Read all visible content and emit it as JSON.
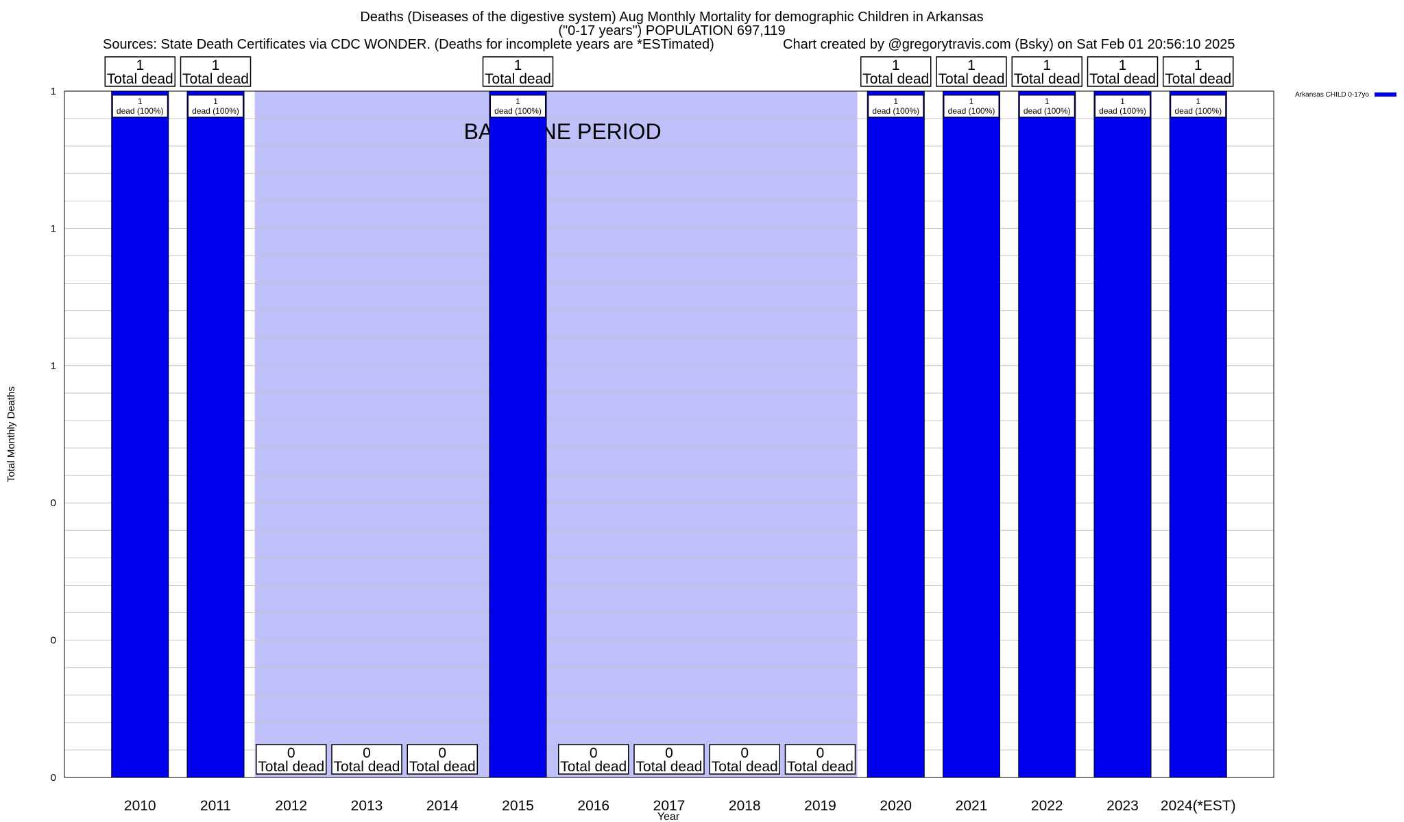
{
  "header": {
    "title_line1": "Deaths (Diseases of the digestive system) Aug Monthly Mortality for demographic Children in Arkansas",
    "title_line2": "(\"0-17 years\") POPULATION 697,119",
    "sources": "Sources: State Death Certificates via CDC WONDER. (Deaths for incomplete years are *ESTimated)",
    "credit": "Chart created by @gregorytravis.com (Bsky) on Sat Feb 01 20:56:10 2025"
  },
  "chart_data": {
    "type": "bar",
    "categories": [
      "2010",
      "2011",
      "2012",
      "2013",
      "2014",
      "2015",
      "2016",
      "2017",
      "2018",
      "2019",
      "2020",
      "2021",
      "2022",
      "2023",
      "2024(*EST)"
    ],
    "series": [
      {
        "name": "Arkansas CHILD 0-17yo",
        "color": "#0000ee",
        "values": [
          1,
          1,
          0,
          0,
          0,
          1,
          0,
          0,
          0,
          0,
          1,
          1,
          1,
          1,
          1
        ]
      }
    ],
    "top_label_numbers": [
      "1",
      "1",
      "0",
      "0",
      "0",
      "1",
      "0",
      "0",
      "0",
      "0",
      "1",
      "1",
      "1",
      "1",
      "1"
    ],
    "top_label_text": "Total dead",
    "inner_label_numbers": [
      "1",
      "1",
      "",
      "",
      "",
      "1",
      "",
      "",
      "",
      "",
      "1",
      "1",
      "1",
      "1",
      "1"
    ],
    "inner_label_text": "dead (100%)",
    "xlabel": "Year",
    "ylabel": "Total Monthly Deaths",
    "ylim": [
      0,
      1
    ],
    "ytick_values": [
      0,
      0.2,
      0.4,
      0.6,
      0.8,
      1
    ],
    "ytick_labels": [
      "0",
      "0",
      "0",
      "1",
      "1",
      "1"
    ],
    "baseline": {
      "label": "BASELINE PERIOD",
      "start": "2012",
      "end": "2019",
      "color": "#bfbffa"
    },
    "grid": true,
    "legend": "top-right"
  }
}
